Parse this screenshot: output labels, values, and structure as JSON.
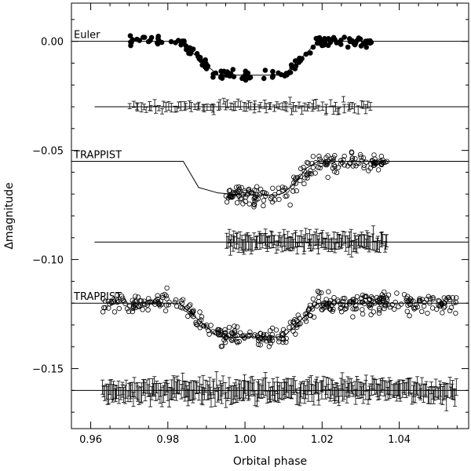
{
  "chart_data": {
    "type": "scatter",
    "xlabel": "Orbital phase",
    "ylabel": "Δmagnitude",
    "xlim": [
      0.955,
      1.058
    ],
    "ylim": [
      0.0175,
      -0.1775
    ],
    "x_ticks": [
      0.96,
      0.98,
      1.0,
      1.02,
      1.04
    ],
    "x_tick_labels": [
      "0.96",
      "0.98",
      "1.00",
      "1.02",
      "1.04"
    ],
    "y_ticks": [
      0.0,
      -0.05,
      -0.1,
      -0.15
    ],
    "y_tick_labels": [
      "0.00",
      "−0.05",
      "−0.10",
      "−0.15"
    ],
    "grid": false,
    "series": [
      {
        "name": "Euler",
        "marker": "filled-circle",
        "phase_range": [
          0.97,
          1.033
        ],
        "n_points": 150,
        "baseline": 0.0,
        "depth": 0.0155,
        "ingress": [
          0.983,
          0.993
        ],
        "egress": [
          1.01,
          1.019
        ],
        "scatter": 0.0012,
        "model_line": {
          "x": [
            0.955,
            0.983,
            0.993,
            1.01,
            1.019,
            1.058
          ],
          "y": [
            0.0,
            0.0,
            -0.0155,
            -0.0155,
            0.0,
            0.0
          ]
        },
        "residuals": {
          "offset": -0.03,
          "phase_range": [
            0.97,
            1.033
          ],
          "n_points": 95,
          "errbar": 0.0017,
          "scatter": 0.0009,
          "line_x": [
            0.961,
            1.058
          ]
        }
      },
      {
        "name": "TRAPPIST",
        "marker": "open-circle",
        "phase_range": [
          0.995,
          1.037
        ],
        "n_points": 190,
        "baseline": -0.055,
        "depth": 0.0155,
        "ingress": [
          0.983,
          0.993
        ],
        "egress": [
          1.01,
          1.019
        ],
        "scatter": 0.0022,
        "model_line": {
          "x": [
            0.955,
            0.984,
            0.986,
            0.988,
            0.993,
            1.0,
            1.008,
            1.01,
            1.013,
            1.016,
            1.019,
            1.058
          ],
          "y": [
            -0.055,
            -0.055,
            -0.061,
            -0.067,
            -0.0695,
            -0.0705,
            -0.0705,
            -0.0695,
            -0.065,
            -0.058,
            -0.055,
            -0.055
          ]
        },
        "residuals": {
          "offset": -0.092,
          "phase_range": [
            0.995,
            1.037
          ],
          "n_points": 130,
          "errbar": 0.003,
          "scatter": 0.0015,
          "line_x": [
            0.961,
            1.058
          ]
        }
      },
      {
        "name": "TRAPPIST",
        "marker": "open-circle",
        "phase_range": [
          0.963,
          1.055
        ],
        "n_points": 420,
        "baseline": -0.12,
        "depth": 0.0155,
        "ingress": [
          0.983,
          0.993
        ],
        "egress": [
          1.01,
          1.019
        ],
        "scatter": 0.0022,
        "model_line": {
          "x": [
            0.955,
            0.983,
            0.993,
            1.01,
            1.019,
            1.058
          ],
          "y": [
            -0.12,
            -0.12,
            -0.1355,
            -0.1355,
            -0.12,
            -0.12
          ]
        },
        "residuals": {
          "offset": -0.16,
          "phase_range": [
            0.963,
            1.055
          ],
          "n_points": 300,
          "errbar": 0.0035,
          "scatter": 0.0018,
          "line_x": [
            0.955,
            1.058
          ]
        }
      }
    ]
  }
}
